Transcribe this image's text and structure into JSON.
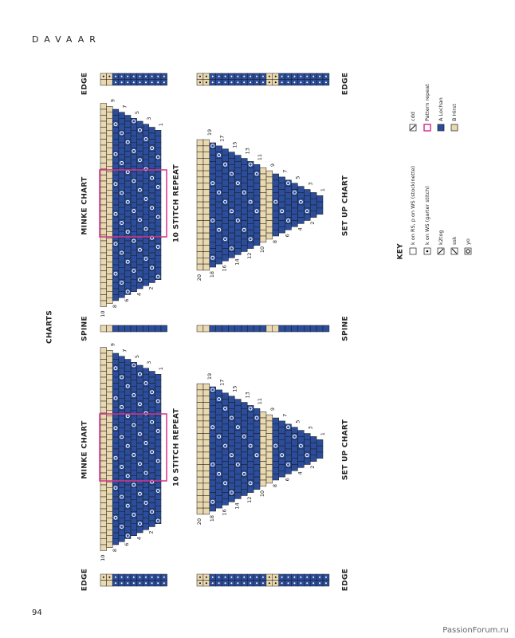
{
  "header": {
    "title": "DAVAAR",
    "section": "CHARTS"
  },
  "labels": {
    "edge": "EDGE",
    "minke": "MINKE CHART",
    "repeat": "10 STITCH REPEAT",
    "spine": "SPINE",
    "setup": "SET UP CHART"
  },
  "minke_chart": {
    "odd_rows": [
      1,
      3,
      5,
      7,
      9
    ],
    "even_rows": [
      2,
      4,
      6,
      8,
      10
    ]
  },
  "setup_chart": {
    "odd_rows": [
      1,
      3,
      5,
      7,
      9,
      11,
      13,
      15,
      17,
      19
    ],
    "even_rows": [
      2,
      4,
      6,
      8,
      10,
      12,
      14,
      16,
      18,
      20
    ]
  },
  "key": {
    "title": "KEY",
    "items": [
      "k on RS, p on WS (stockinette)",
      "k on WS (garter stitch)",
      "k2tog",
      "ssk",
      "yo",
      "cdd",
      "Pattern repeat",
      "A Lochan",
      "B Hirst"
    ]
  },
  "footer": {
    "page": "94",
    "watermark": "PassionForum.ru"
  }
}
